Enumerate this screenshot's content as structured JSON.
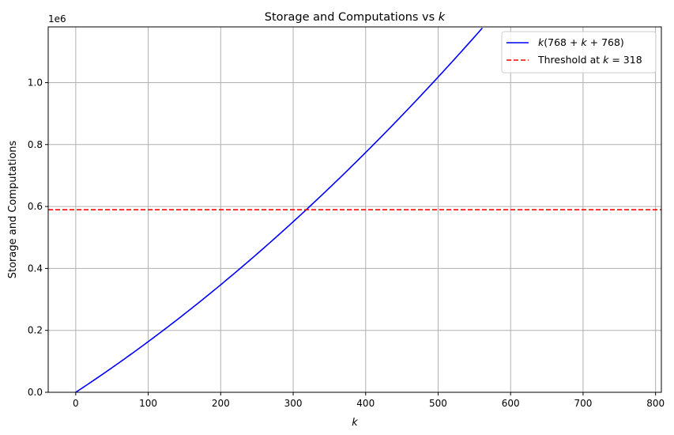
{
  "chart_data": {
    "type": "line",
    "title_prefix": "Storage and Computations vs ",
    "title_var": "k",
    "xlabel": "k",
    "ylabel": "Storage and Computations",
    "y_offset_text": "1e6",
    "xlim": [
      -38,
      808
    ],
    "ylim": [
      0,
      1180000
    ],
    "xticks": [
      0,
      100,
      200,
      300,
      400,
      500,
      600,
      700,
      800
    ],
    "xtick_labels": [
      "0",
      "100",
      "200",
      "300",
      "400",
      "500",
      "600",
      "700",
      "800"
    ],
    "yticks": [
      0,
      200000,
      400000,
      600000,
      800000,
      1000000
    ],
    "ytick_labels": [
      "0.0",
      "0.2",
      "0.4",
      "0.6",
      "0.8",
      "1.0"
    ],
    "grid": true,
    "legend_position": "top-right",
    "series": [
      {
        "name": "k(768 + k + 768)",
        "kind": "line",
        "color": "#0000ff",
        "formula": "k*(768+k+768)",
        "x": [
          0,
          50,
          100,
          150,
          200,
          250,
          300,
          318,
          350,
          400,
          450,
          500,
          550,
          561
        ],
        "y": [
          0,
          79300,
          163600,
          252900,
          347200,
          446500,
          550800,
          589572,
          660100,
          774400,
          893700,
          1018000,
          1147300,
          1176417
        ]
      },
      {
        "name": "Threshold at k = 318",
        "kind": "hline",
        "color": "#ff0000",
        "linestyle": "dashed",
        "y": 589572
      }
    ]
  },
  "legend": {
    "series1_parts": [
      "k",
      "(768 + ",
      "k",
      " + 768)"
    ],
    "series2_parts": [
      "Threshold at ",
      "k",
      " = 318"
    ]
  }
}
